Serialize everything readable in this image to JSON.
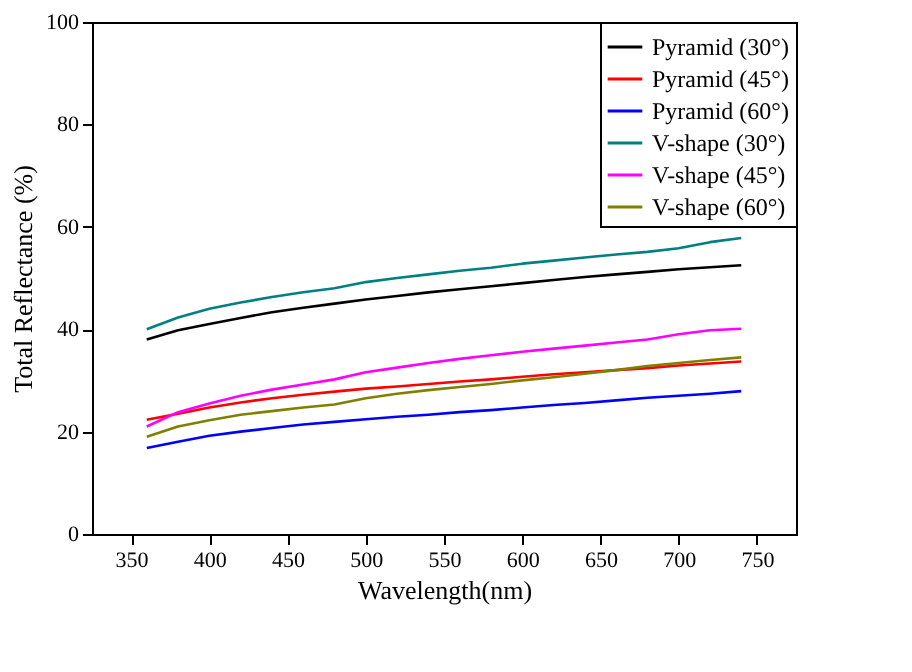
{
  "chart_data": {
    "type": "line",
    "xlabel": "Wavelength(nm)",
    "ylabel": "Total Reflectance (%)",
    "x": [
      360,
      380,
      400,
      420,
      440,
      460,
      480,
      500,
      520,
      540,
      560,
      580,
      600,
      620,
      640,
      660,
      680,
      700,
      720,
      740
    ],
    "xlim": [
      325,
      775
    ],
    "xticks": [
      350,
      400,
      450,
      500,
      550,
      600,
      650,
      700,
      750
    ],
    "ylim": [
      0,
      100
    ],
    "yticks": [
      0,
      20,
      40,
      60,
      80,
      100
    ],
    "grid": false,
    "legend": "top right",
    "marker": "none",
    "line_style": "solid",
    "series": [
      {
        "name": "Pyramid (30°)",
        "color": "#000000",
        "values": [
          38,
          39.8,
          41,
          42.2,
          43.3,
          44.2,
          45,
          45.8,
          46.5,
          47.2,
          47.8,
          48.4,
          49,
          49.6,
          50.2,
          50.7,
          51.2,
          51.7,
          52.1,
          52.5
        ]
      },
      {
        "name": "Pyramid (45°)",
        "color": "#ff0000",
        "values": [
          22.3,
          23.5,
          24.7,
          25.7,
          26.5,
          27.2,
          27.8,
          28.4,
          28.8,
          29.3,
          29.8,
          30.2,
          30.7,
          31.2,
          31.6,
          32,
          32.4,
          32.9,
          33.3,
          33.7
        ]
      },
      {
        "name": "Pyramid (60°)",
        "color": "#0000ff",
        "values": [
          16.8,
          18,
          19.2,
          20,
          20.7,
          21.4,
          21.9,
          22.4,
          22.9,
          23.3,
          23.8,
          24.2,
          24.7,
          25.2,
          25.6,
          26.1,
          26.6,
          27,
          27.4,
          27.9
        ]
      },
      {
        "name": "V-shape (30°)",
        "color": "#008080",
        "values": [
          40,
          42.3,
          44,
          45.2,
          46.3,
          47.2,
          48,
          49.2,
          50,
          50.7,
          51.4,
          52,
          52.8,
          53.4,
          54,
          54.6,
          55.1,
          55.8,
          57,
          57.8
        ]
      },
      {
        "name": "V-shape (45°)",
        "color": "#ff00ff",
        "values": [
          21,
          23.8,
          25.5,
          27,
          28.2,
          29.2,
          30.2,
          31.6,
          32.5,
          33.4,
          34.2,
          34.9,
          35.6,
          36.2,
          36.8,
          37.4,
          38,
          39,
          39.8,
          40.1
        ]
      },
      {
        "name": "V-shape (60°)",
        "color": "#808000",
        "values": [
          19,
          21,
          22.2,
          23.3,
          24,
          24.7,
          25.3,
          26.5,
          27.4,
          28.1,
          28.7,
          29.3,
          30,
          30.6,
          31.3,
          32,
          32.8,
          33.4,
          34,
          34.5
        ]
      }
    ]
  }
}
